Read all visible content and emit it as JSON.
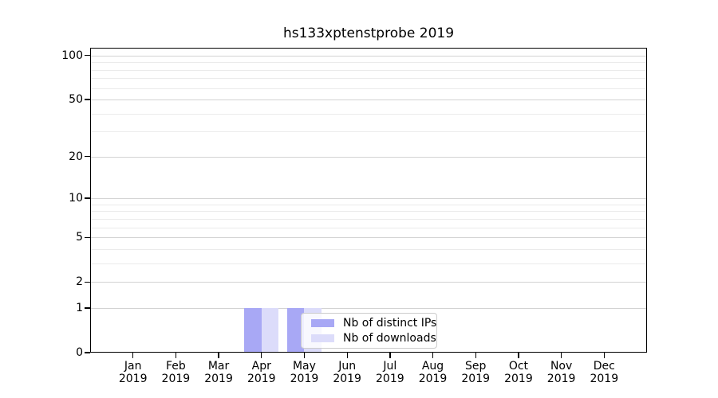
{
  "title": "hs133xptenstprobe 2019",
  "chart_data": {
    "type": "bar",
    "title": "hs133xptenstprobe 2019",
    "categories": [
      "Jan",
      "Feb",
      "Mar",
      "Apr",
      "May",
      "Jun",
      "Jul",
      "Aug",
      "Sep",
      "Oct",
      "Nov",
      "Dec"
    ],
    "year": "2019",
    "series": [
      {
        "name": "Nb of distinct IPs",
        "color": "#a8a8f5",
        "values": [
          0,
          0,
          0,
          1,
          1,
          0,
          0,
          0,
          0,
          0,
          0,
          0
        ]
      },
      {
        "name": "Nb of downloads",
        "color": "#dcdcfa",
        "values": [
          0,
          0,
          0,
          1,
          1,
          0,
          0,
          0,
          0,
          0,
          0,
          0
        ]
      }
    ],
    "yticks": [
      0,
      1,
      2,
      5,
      10,
      20,
      50,
      100
    ],
    "y_minor_ticks": [
      3,
      4,
      6,
      7,
      8,
      9,
      30,
      40,
      60,
      70,
      80,
      90
    ],
    "ylim": [
      0,
      113
    ],
    "xlim": [
      -1,
      12
    ],
    "yscale": "log1p",
    "grid": "horizontal",
    "legend_position": "lower-center",
    "bar_width_units": 0.4
  },
  "colors": {
    "grid_major": "#d3d3d3",
    "grid_minor": "#ebebeb",
    "spine": "#000000",
    "background": "#ffffff"
  }
}
